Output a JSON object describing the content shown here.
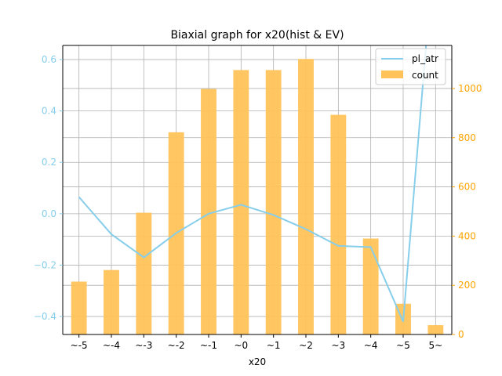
{
  "chart_data": {
    "type": "bar+line",
    "title": "Biaxial graph for x20(hist & EV)",
    "xlabel": "x20",
    "categories": [
      "~-5",
      "~-4",
      "~-3",
      "~-2",
      "~-1",
      "~0",
      "~1",
      "~2",
      "~3",
      "~4",
      "~5",
      "5~"
    ],
    "bar_series": {
      "name": "count",
      "color": "#ffc35a",
      "axis": "right",
      "values": [
        215,
        262,
        495,
        822,
        998,
        1075,
        1075,
        1120,
        893,
        390,
        125,
        38
      ]
    },
    "line_series": {
      "name": "pl_atr",
      "color": "#87ceeb",
      "axis": "left",
      "values": [
        0.065,
        -0.08,
        -0.17,
        -0.075,
        0.0,
        0.035,
        -0.005,
        -0.06,
        -0.125,
        -0.13,
        -0.42,
        1.1
      ]
    },
    "left_axis": {
      "ylim": [
        -0.47,
        0.655
      ],
      "ticks": [
        -0.4,
        -0.2,
        0.0,
        0.2,
        0.4,
        0.6
      ],
      "tick_labels": [
        "−0.4",
        "−0.2",
        "0.0",
        "0.2",
        "0.4",
        "0.6"
      ],
      "color": "#87ceeb"
    },
    "right_axis": {
      "ylim": [
        0,
        1175
      ],
      "ticks": [
        0,
        200,
        400,
        600,
        800,
        1000
      ],
      "tick_labels": [
        "0",
        "200",
        "400",
        "600",
        "800",
        "1000"
      ],
      "color": "#ffa500"
    },
    "grid": true,
    "legend": {
      "placement": "top-right",
      "entries": [
        "pl_atr",
        "count"
      ]
    }
  }
}
